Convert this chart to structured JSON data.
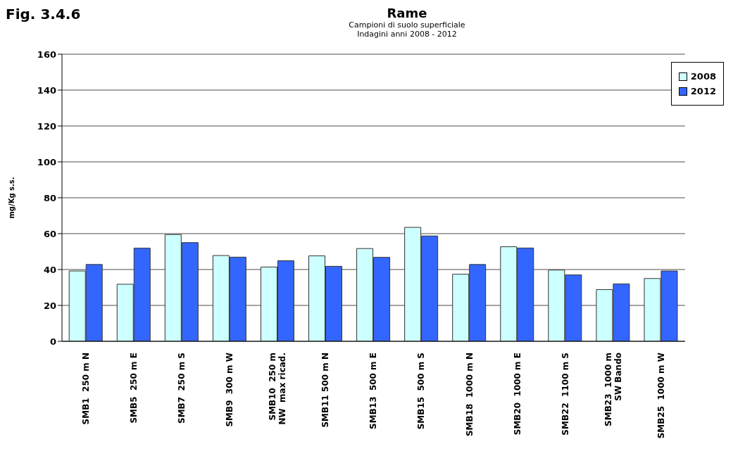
{
  "chart_data": {
    "type": "bar",
    "title": "Rame",
    "subtitle": "Campioni di suolo superficiale\nIndagini anni 2008 - 2012",
    "ylabel": "mg/Kg s.s.",
    "annotations": [
      "Fig. 3.4.6"
    ],
    "categories": [
      "SMB1  250 m N",
      "SMB5  250 m E",
      "SMB7  250 m S",
      "SMB9  300 m W",
      "SMB10  250 m\nNW  max ricad.",
      "SMB11 500 m N",
      "SMB13  500 m E",
      "SMB15  500 m S",
      "SMB18  1000 m N",
      "SMB20  1000 m E",
      "SMB22  1100 m S",
      "SMB23  1000 m\nSW Bando",
      "SMB25  1000 m W"
    ],
    "series": [
      {
        "name": "2008",
        "color": "#ccffff",
        "values": [
          39.2,
          31.8,
          59.5,
          47.8,
          41.4,
          47.6,
          51.7,
          63.5,
          37.4,
          52.7,
          39.7,
          28.8,
          35
        ]
      },
      {
        "name": "2012",
        "color": "#3366ff",
        "values": [
          42.8,
          51.9,
          55,
          46.9,
          44.9,
          41.8,
          46.8,
          58.7,
          42.8,
          52,
          37,
          32,
          39.2
        ]
      }
    ],
    "ylim": [
      0,
      160
    ],
    "yticks": [
      0,
      20,
      40,
      60,
      80,
      100,
      120,
      140,
      160
    ],
    "grid": "y",
    "legend": "top right"
  }
}
